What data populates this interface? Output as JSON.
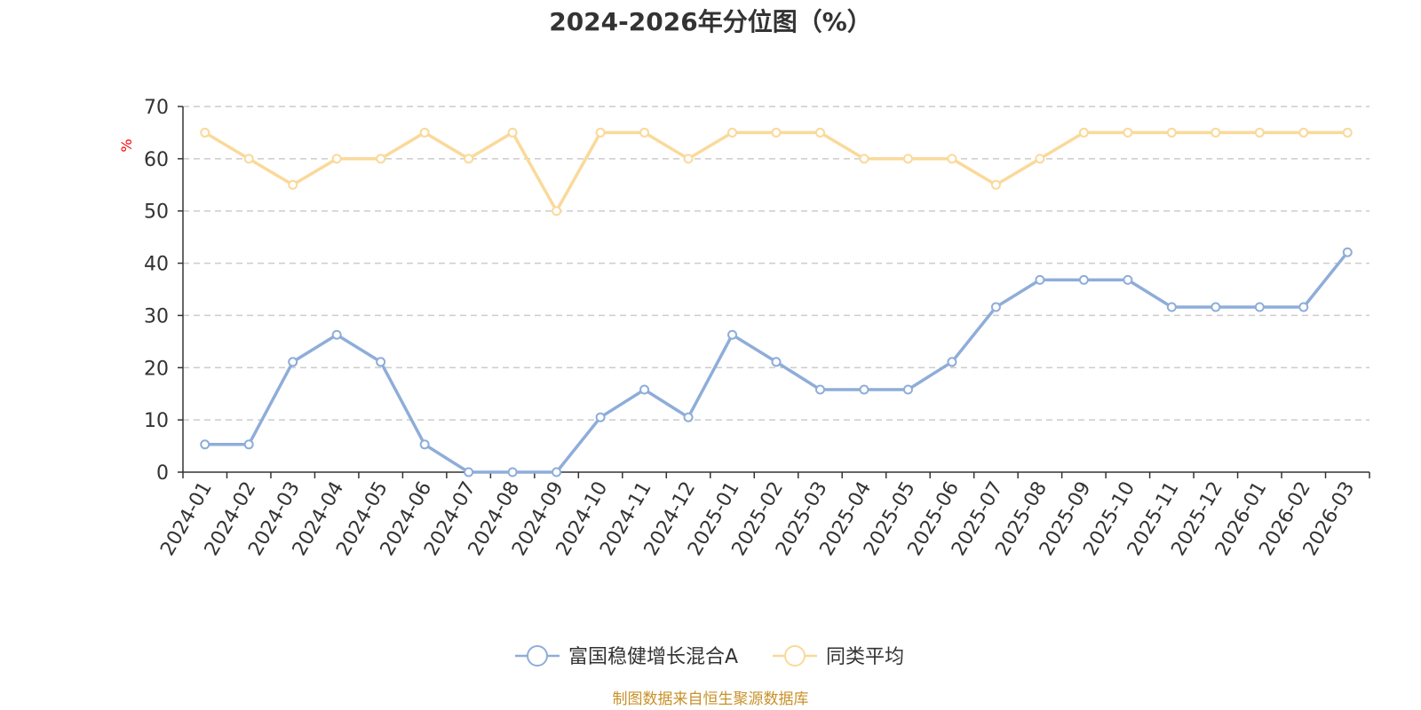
{
  "colors": {
    "series_fund": "#8eadd9",
    "series_avg": "#fad99a",
    "axis": "#333333",
    "grid": "#cccccc",
    "unit": "#ff0000",
    "source": "#c8922a"
  },
  "source_text": "制图数据来自恒生聚源数据库",
  "chart_data": {
    "type": "line",
    "title": "2024-2026年分位图（%）",
    "ylabel": "%",
    "xlabel": "",
    "ylim": [
      0,
      70
    ],
    "yticks": [
      0,
      10,
      20,
      30,
      40,
      50,
      60,
      70
    ],
    "grid": true,
    "legend_position": "bottom",
    "categories": [
      "2024-01",
      "2024-02",
      "2024-03",
      "2024-04",
      "2024-05",
      "2024-06",
      "2024-07",
      "2024-08",
      "2024-09",
      "2024-10",
      "2024-11",
      "2024-12",
      "2025-01",
      "2025-02",
      "2025-03",
      "2025-04",
      "2025-05",
      "2025-06",
      "2025-07",
      "2025-08",
      "2025-09",
      "2025-10",
      "2025-11",
      "2025-12",
      "2026-01",
      "2026-02",
      "2026-03"
    ],
    "series": [
      {
        "name": "富国稳健增长混合A",
        "values": [
          5.3,
          5.3,
          21.1,
          26.3,
          21.1,
          5.3,
          0,
          0,
          0,
          10.5,
          15.8,
          10.5,
          26.3,
          21.1,
          15.8,
          15.8,
          15.8,
          21.1,
          31.6,
          36.8,
          36.8,
          36.8,
          31.6,
          31.6,
          31.6,
          31.6,
          42.1
        ]
      },
      {
        "name": "同类平均",
        "values": [
          65,
          60,
          55,
          60,
          60,
          65,
          60,
          65,
          50,
          65,
          65,
          60,
          65,
          65,
          65,
          60,
          60,
          60,
          55,
          60,
          65,
          65,
          65,
          65,
          65,
          65,
          65
        ]
      }
    ]
  }
}
